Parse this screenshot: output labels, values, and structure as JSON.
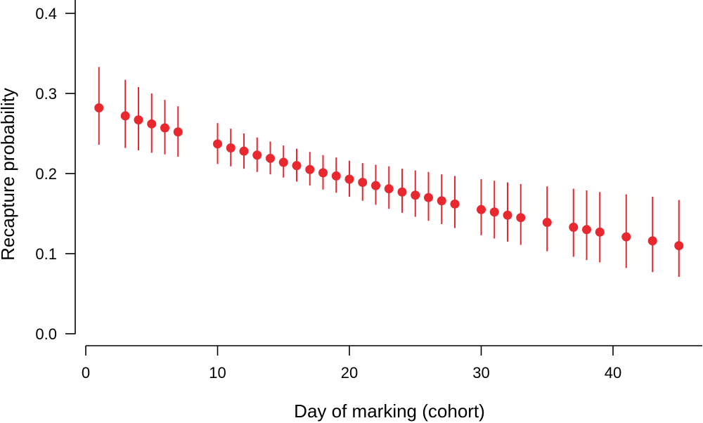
{
  "chart_data": {
    "type": "scatter",
    "title": "",
    "xlabel": "Day of marking (cohort)",
    "ylabel": "Recapture probability",
    "xlim": [
      0,
      46
    ],
    "ylim": [
      0,
      0.4
    ],
    "xticks": [
      0,
      10,
      20,
      30,
      40
    ],
    "yticks": [
      0.0,
      0.1,
      0.2,
      0.3,
      0.4
    ],
    "ytick_labels": [
      "0.0",
      "0.1",
      "0.2",
      "0.3",
      "0.4"
    ],
    "grid": false,
    "color": "#e8272e",
    "series": [
      {
        "points": [
          {
            "x": 1,
            "y": 0.282,
            "lo": 0.236,
            "hi": 0.333
          },
          {
            "x": 3,
            "y": 0.272,
            "lo": 0.232,
            "hi": 0.317
          },
          {
            "x": 4,
            "y": 0.267,
            "lo": 0.229,
            "hi": 0.308
          },
          {
            "x": 5,
            "y": 0.262,
            "lo": 0.226,
            "hi": 0.3
          },
          {
            "x": 6,
            "y": 0.257,
            "lo": 0.224,
            "hi": 0.292
          },
          {
            "x": 7,
            "y": 0.252,
            "lo": 0.221,
            "hi": 0.284
          },
          {
            "x": 10,
            "y": 0.237,
            "lo": 0.212,
            "hi": 0.263
          },
          {
            "x": 11,
            "y": 0.232,
            "lo": 0.209,
            "hi": 0.256
          },
          {
            "x": 12,
            "y": 0.228,
            "lo": 0.206,
            "hi": 0.25
          },
          {
            "x": 13,
            "y": 0.223,
            "lo": 0.202,
            "hi": 0.245
          },
          {
            "x": 14,
            "y": 0.219,
            "lo": 0.199,
            "hi": 0.24
          },
          {
            "x": 15,
            "y": 0.214,
            "lo": 0.195,
            "hi": 0.235
          },
          {
            "x": 16,
            "y": 0.21,
            "lo": 0.19,
            "hi": 0.231
          },
          {
            "x": 17,
            "y": 0.205,
            "lo": 0.185,
            "hi": 0.227
          },
          {
            "x": 18,
            "y": 0.201,
            "lo": 0.18,
            "hi": 0.223
          },
          {
            "x": 19,
            "y": 0.197,
            "lo": 0.176,
            "hi": 0.22
          },
          {
            "x": 20,
            "y": 0.193,
            "lo": 0.171,
            "hi": 0.216
          },
          {
            "x": 21,
            "y": 0.189,
            "lo": 0.166,
            "hi": 0.213
          },
          {
            "x": 22,
            "y": 0.185,
            "lo": 0.161,
            "hi": 0.211
          },
          {
            "x": 23,
            "y": 0.181,
            "lo": 0.156,
            "hi": 0.209
          },
          {
            "x": 24,
            "y": 0.177,
            "lo": 0.151,
            "hi": 0.206
          },
          {
            "x": 25,
            "y": 0.173,
            "lo": 0.146,
            "hi": 0.204
          },
          {
            "x": 26,
            "y": 0.17,
            "lo": 0.141,
            "hi": 0.202
          },
          {
            "x": 27,
            "y": 0.166,
            "lo": 0.137,
            "hi": 0.199
          },
          {
            "x": 28,
            "y": 0.162,
            "lo": 0.132,
            "hi": 0.197
          },
          {
            "x": 30,
            "y": 0.155,
            "lo": 0.123,
            "hi": 0.193
          },
          {
            "x": 31,
            "y": 0.152,
            "lo": 0.119,
            "hi": 0.191
          },
          {
            "x": 32,
            "y": 0.148,
            "lo": 0.115,
            "hi": 0.189
          },
          {
            "x": 33,
            "y": 0.145,
            "lo": 0.111,
            "hi": 0.187
          },
          {
            "x": 35,
            "y": 0.139,
            "lo": 0.103,
            "hi": 0.184
          },
          {
            "x": 37,
            "y": 0.133,
            "lo": 0.096,
            "hi": 0.181
          },
          {
            "x": 38,
            "y": 0.13,
            "lo": 0.092,
            "hi": 0.179
          },
          {
            "x": 39,
            "y": 0.127,
            "lo": 0.089,
            "hi": 0.177
          },
          {
            "x": 41,
            "y": 0.121,
            "lo": 0.082,
            "hi": 0.174
          },
          {
            "x": 43,
            "y": 0.116,
            "lo": 0.077,
            "hi": 0.171
          },
          {
            "x": 45,
            "y": 0.11,
            "lo": 0.071,
            "hi": 0.167
          }
        ]
      }
    ]
  }
}
